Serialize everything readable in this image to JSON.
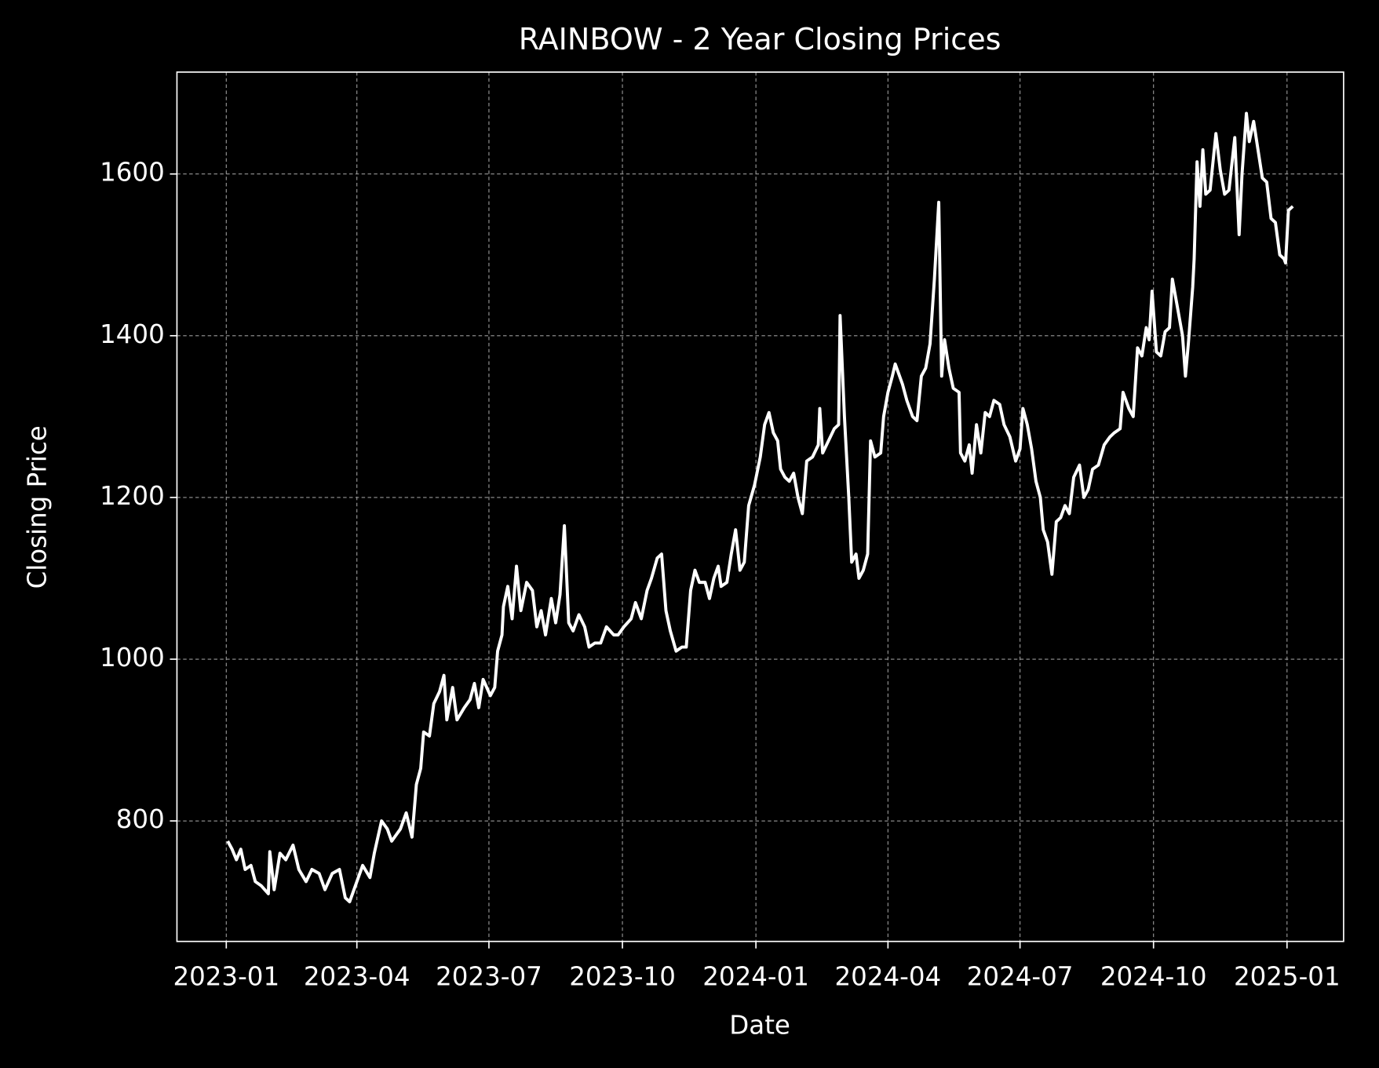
{
  "chart_data": {
    "type": "line",
    "title": "RAINBOW - 2 Year Closing Prices",
    "xlabel": "Date",
    "ylabel": "Closing Price",
    "x": [
      1,
      4,
      7,
      10,
      13,
      17,
      20,
      24,
      29,
      30,
      33,
      37,
      41,
      46,
      50,
      55,
      59,
      64,
      68,
      73,
      78,
      82,
      85,
      90,
      94,
      99,
      102,
      107,
      111,
      114,
      120,
      124,
      128,
      131,
      134,
      136,
      140,
      143,
      147,
      150,
      152,
      156,
      159,
      164,
      168,
      171,
      174,
      177,
      182,
      185,
      187,
      190,
      191,
      194,
      197,
      200,
      203,
      207,
      211,
      214,
      217,
      220,
      224,
      227,
      230,
      233,
      236,
      239,
      243,
      247,
      250,
      254,
      258,
      262,
      267,
      270,
      274,
      279,
      282,
      286,
      290,
      293,
      297,
      300,
      303,
      306,
      310,
      314,
      317,
      320,
      323,
      326,
      330,
      333,
      336,
      339,
      341,
      345,
      348,
      351,
      354,
      357,
      360,
      364,
      368,
      371,
      374,
      377,
      380,
      382,
      385,
      388,
      391,
      394,
      397,
      400,
      404,
      408,
      409,
      411,
      415,
      419,
      422,
      423,
      426,
      429,
      431,
      434,
      436,
      439,
      442,
      444,
      447,
      451,
      453,
      456,
      459,
      461,
      463,
      466,
      469,
      473,
      476,
      479,
      482,
      485,
      488,
      491,
      493,
      495,
      498,
      501,
      505,
      506,
      509,
      512,
      514,
      517,
      520,
      523,
      526,
      529,
      533,
      536,
      540,
      544,
      547,
      549,
      552,
      555,
      558,
      561,
      563,
      566,
      569,
      572,
      575,
      578,
      581,
      584,
      588,
      591,
      594,
      597,
      601,
      605,
      609,
      612,
      616,
      618,
      622,
      625,
      628,
      631,
      634,
      636,
      638,
      641,
      644,
      647,
      650,
      652,
      655,
      659,
      661,
      663,
      666,
      667,
      669,
      671,
      673,
      675,
      678,
      682,
      685,
      688,
      691,
      695,
      698,
      700,
      703,
      705,
      708,
      711,
      714,
      717,
      720,
      723,
      726,
      729,
      730,
      732,
      735
    ],
    "series": [
      {
        "name": "RAINBOW",
        "color": "#ffffff",
        "values": [
          775,
          765,
          752,
          765,
          740,
          745,
          725,
          720,
          710,
          762,
          715,
          760,
          752,
          770,
          740,
          725,
          740,
          735,
          715,
          735,
          740,
          705,
          700,
          725,
          745,
          730,
          760,
          800,
          790,
          775,
          790,
          810,
          780,
          845,
          865,
          910,
          905,
          945,
          960,
          980,
          925,
          965,
          925,
          940,
          950,
          970,
          940,
          975,
          955,
          965,
          1010,
          1030,
          1065,
          1090,
          1050,
          1115,
          1060,
          1095,
          1085,
          1040,
          1060,
          1030,
          1075,
          1045,
          1080,
          1165,
          1045,
          1035,
          1055,
          1040,
          1015,
          1020,
          1020,
          1040,
          1030,
          1030,
          1040,
          1050,
          1070,
          1050,
          1085,
          1100,
          1125,
          1130,
          1060,
          1035,
          1010,
          1015,
          1015,
          1085,
          1110,
          1095,
          1095,
          1075,
          1100,
          1115,
          1090,
          1095,
          1130,
          1160,
          1110,
          1120,
          1190,
          1215,
          1250,
          1290,
          1305,
          1280,
          1270,
          1235,
          1225,
          1220,
          1230,
          1200,
          1180,
          1245,
          1250,
          1265,
          1310,
          1255,
          1270,
          1285,
          1290,
          1425,
          1300,
          1200,
          1120,
          1130,
          1100,
          1110,
          1130,
          1270,
          1250,
          1255,
          1300,
          1330,
          1350,
          1365,
          1355,
          1340,
          1320,
          1300,
          1295,
          1350,
          1360,
          1390,
          1470,
          1565,
          1350,
          1395,
          1360,
          1335,
          1330,
          1255,
          1245,
          1265,
          1230,
          1290,
          1255,
          1305,
          1300,
          1320,
          1315,
          1290,
          1275,
          1245,
          1260,
          1310,
          1290,
          1260,
          1220,
          1200,
          1160,
          1145,
          1105,
          1170,
          1175,
          1190,
          1180,
          1225,
          1240,
          1200,
          1210,
          1235,
          1240,
          1265,
          1275,
          1280,
          1285,
          1330,
          1310,
          1300,
          1385,
          1375,
          1410,
          1395,
          1455,
          1380,
          1375,
          1405,
          1410,
          1470,
          1440,
          1400,
          1350,
          1390,
          1460,
          1495,
          1615,
          1560,
          1630,
          1575,
          1580,
          1650,
          1605,
          1575,
          1580,
          1645,
          1525,
          1600,
          1675,
          1640,
          1665,
          1630,
          1595,
          1590,
          1545,
          1540,
          1500,
          1495,
          1490,
          1555,
          1560
        ]
      }
    ],
    "xlim": [
      -34,
      770
    ],
    "xticks": [
      {
        "value": 0,
        "label": "2023-01"
      },
      {
        "value": 90,
        "label": "2023-04"
      },
      {
        "value": 181,
        "label": "2023-07"
      },
      {
        "value": 273,
        "label": "2023-10"
      },
      {
        "value": 365,
        "label": "2024-01"
      },
      {
        "value": 456,
        "label": "2024-04"
      },
      {
        "value": 547,
        "label": "2024-07"
      },
      {
        "value": 639,
        "label": "2024-10"
      },
      {
        "value": 731,
        "label": "2025-01"
      }
    ],
    "ylim": [
      651,
      1726
    ],
    "yticks": [
      800,
      1000,
      1200,
      1400,
      1600
    ],
    "grid": true
  }
}
